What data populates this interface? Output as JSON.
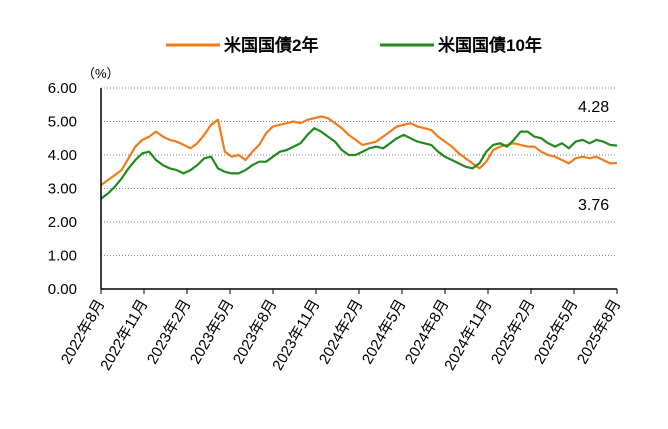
{
  "chart_data": {
    "type": "line",
    "unit_label": "（%）",
    "ylim": [
      0,
      6
    ],
    "y_ticks": [
      "0.00",
      "1.00",
      "2.00",
      "3.00",
      "4.00",
      "5.00",
      "6.00"
    ],
    "x_ticks": [
      "2022年8月",
      "2022年11月",
      "2023年2月",
      "2023年5月",
      "2023年8月",
      "2023年11月",
      "2024年2月",
      "2024年5月",
      "2024年8月",
      "2024年11月",
      "2025年2月",
      "2025年5月",
      "2025年8月"
    ],
    "grid": true,
    "legend_position": "top",
    "annotations": [
      "4.28",
      "3.76"
    ],
    "series": [
      {
        "name": "米国国債2年",
        "color": "#f07c1e",
        "values": [
          3.1,
          3.25,
          3.4,
          3.55,
          3.9,
          4.25,
          4.45,
          4.55,
          4.7,
          4.55,
          4.45,
          4.4,
          4.3,
          4.2,
          4.35,
          4.6,
          4.9,
          5.05,
          4.1,
          3.95,
          4.0,
          3.85,
          4.1,
          4.3,
          4.65,
          4.85,
          4.9,
          4.95,
          5.0,
          4.95,
          5.05,
          5.1,
          5.15,
          5.1,
          4.95,
          4.8,
          4.6,
          4.45,
          4.3,
          4.35,
          4.4,
          4.55,
          4.7,
          4.85,
          4.9,
          4.95,
          4.85,
          4.8,
          4.75,
          4.55,
          4.4,
          4.25,
          4.05,
          3.9,
          3.75,
          3.6,
          3.8,
          4.15,
          4.25,
          4.3,
          4.35,
          4.3,
          4.25,
          4.25,
          4.1,
          4.0,
          3.95,
          3.85,
          3.75,
          3.9,
          3.95,
          3.9,
          3.95,
          3.85,
          3.75,
          3.76
        ]
      },
      {
        "name": "米国国債10年",
        "color": "#238a1f",
        "values": [
          2.7,
          2.85,
          3.05,
          3.3,
          3.6,
          3.85,
          4.05,
          4.1,
          3.85,
          3.7,
          3.6,
          3.55,
          3.45,
          3.55,
          3.7,
          3.9,
          3.95,
          3.6,
          3.5,
          3.45,
          3.45,
          3.55,
          3.7,
          3.8,
          3.8,
          3.95,
          4.1,
          4.15,
          4.25,
          4.35,
          4.6,
          4.8,
          4.7,
          4.55,
          4.4,
          4.15,
          4.0,
          4.0,
          4.1,
          4.2,
          4.25,
          4.2,
          4.35,
          4.5,
          4.6,
          4.5,
          4.4,
          4.35,
          4.3,
          4.1,
          3.95,
          3.85,
          3.75,
          3.65,
          3.6,
          3.75,
          4.1,
          4.3,
          4.35,
          4.25,
          4.45,
          4.7,
          4.7,
          4.55,
          4.5,
          4.35,
          4.25,
          4.35,
          4.2,
          4.4,
          4.45,
          4.35,
          4.45,
          4.4,
          4.3,
          4.28
        ]
      }
    ]
  }
}
